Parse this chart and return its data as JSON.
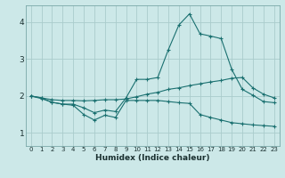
{
  "xlabel": "Humidex (Indice chaleur)",
  "background_color": "#cce8e8",
  "grid_color": "#aacccc",
  "line_color": "#1a7070",
  "spine_color": "#7aa8a8",
  "x_ticks": [
    0,
    1,
    2,
    3,
    4,
    5,
    6,
    7,
    8,
    9,
    10,
    11,
    12,
    13,
    14,
    15,
    16,
    17,
    18,
    19,
    20,
    21,
    22,
    23
  ],
  "y_ticks": [
    1,
    2,
    3,
    4
  ],
  "xlim": [
    -0.5,
    23.5
  ],
  "ylim": [
    0.65,
    4.45
  ],
  "series": {
    "max": {
      "x": [
        0,
        1,
        2,
        3,
        4,
        5,
        6,
        7,
        8,
        9,
        10,
        11,
        12,
        13,
        14,
        15,
        16,
        17,
        18,
        19,
        20,
        21,
        22,
        23
      ],
      "y": [
        2.0,
        1.93,
        1.83,
        1.78,
        1.78,
        1.68,
        1.55,
        1.62,
        1.58,
        1.95,
        2.45,
        2.45,
        2.5,
        3.25,
        3.92,
        4.22,
        3.68,
        3.62,
        3.55,
        2.72,
        2.18,
        2.02,
        1.85,
        1.82
      ]
    },
    "mean": {
      "x": [
        0,
        1,
        2,
        3,
        4,
        5,
        6,
        7,
        8,
        9,
        10,
        11,
        12,
        13,
        14,
        15,
        16,
        17,
        18,
        19,
        20,
        21,
        22,
        23
      ],
      "y": [
        2.0,
        1.95,
        1.9,
        1.88,
        1.88,
        1.87,
        1.88,
        1.9,
        1.9,
        1.92,
        1.98,
        2.05,
        2.1,
        2.18,
        2.22,
        2.28,
        2.33,
        2.38,
        2.42,
        2.48,
        2.5,
        2.22,
        2.05,
        1.95
      ]
    },
    "min": {
      "x": [
        0,
        1,
        2,
        3,
        4,
        5,
        6,
        7,
        8,
        9,
        10,
        11,
        12,
        13,
        14,
        15,
        16,
        17,
        18,
        19,
        20,
        21,
        22,
        23
      ],
      "y": [
        2.0,
        1.95,
        1.83,
        1.78,
        1.75,
        1.5,
        1.35,
        1.48,
        1.42,
        1.88,
        1.88,
        1.88,
        1.88,
        1.85,
        1.82,
        1.8,
        1.5,
        1.42,
        1.35,
        1.28,
        1.25,
        1.22,
        1.2,
        1.18
      ]
    }
  }
}
